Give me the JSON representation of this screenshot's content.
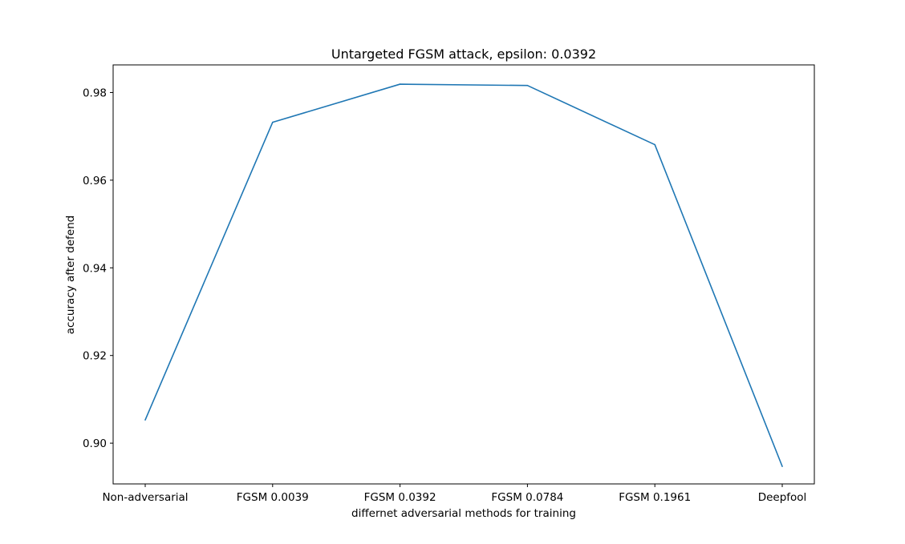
{
  "chart_data": {
    "type": "line",
    "title": "Untargeted FGSM attack, epsilon: 0.0392",
    "xlabel": "differnet adversarial methods for training",
    "ylabel": "accuracy after defend",
    "categories": [
      "Non-adversarial",
      "FGSM 0.0039",
      "FGSM 0.0392",
      "FGSM 0.0784",
      "FGSM 0.1961",
      "Deepfool"
    ],
    "series": [
      {
        "values": [
          0.9053,
          0.9732,
          0.9819,
          0.9816,
          0.9681,
          0.8947
        ],
        "color": "#1f77b4"
      }
    ],
    "yticks": [
      "0.90",
      "0.92",
      "0.94",
      "0.96",
      "0.98"
    ],
    "ylim": [
      0.8907,
      0.9863
    ],
    "grid": false
  }
}
